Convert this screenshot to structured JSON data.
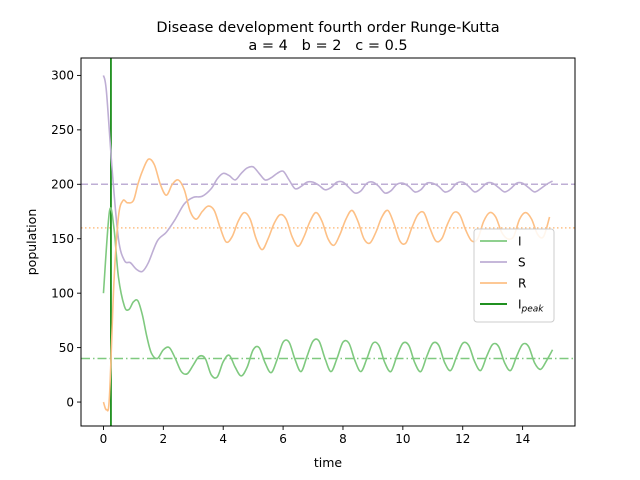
{
  "chart_data": {
    "type": "line",
    "title": "Disease development fourth order Runge-Kutta",
    "subtitle": "a = 4   b = 2   c = 0.5",
    "xlabel": "time",
    "ylabel": "population",
    "xlim": [
      -0.75,
      15.75
    ],
    "ylim": [
      -22,
      316
    ],
    "x_ticks": [
      0,
      2,
      4,
      6,
      8,
      10,
      12,
      14
    ],
    "y_ticks": [
      0,
      50,
      100,
      150,
      200,
      250,
      300
    ],
    "grid": false,
    "legend_position": "center right",
    "series": [
      {
        "name": "I",
        "color": "#7fc97f",
        "x": [
          0,
          0.2,
          0.35,
          0.5,
          0.7,
          0.85,
          1.0,
          1.15,
          1.3,
          1.45,
          1.6,
          1.8,
          2.0,
          2.2,
          2.4,
          2.6,
          2.8,
          3.0,
          3.2,
          3.4,
          3.6,
          3.8,
          4.0,
          4.2,
          4.4,
          4.6,
          4.8,
          5.0,
          5.2,
          5.4,
          5.6,
          5.8,
          6.0,
          6.2,
          6.4,
          6.6,
          6.8,
          7.0,
          7.2,
          7.4,
          7.6,
          7.8,
          8.0,
          8.2,
          8.4,
          8.6,
          8.8,
          9.0,
          9.2,
          9.4,
          9.6,
          9.8,
          10.0,
          10.2,
          10.4,
          10.6,
          10.8,
          11.0,
          11.2,
          11.4,
          11.6,
          11.8,
          12.0,
          12.2,
          12.4,
          12.6,
          12.8,
          13.0,
          13.2,
          13.4,
          13.6,
          13.8,
          14.0,
          14.2,
          14.4,
          14.6,
          14.8,
          15.0
        ],
        "values": [
          100,
          175,
          160,
          115,
          88,
          85,
          92,
          93,
          80,
          60,
          45,
          40,
          48,
          50,
          40,
          28,
          26,
          34,
          42,
          40,
          25,
          23,
          37,
          43,
          32,
          24,
          32,
          48,
          50,
          36,
          27,
          39,
          55,
          55,
          39,
          28,
          42,
          56,
          56,
          40,
          28,
          40,
          55,
          54,
          38,
          28,
          40,
          54,
          52,
          36,
          28,
          42,
          54,
          52,
          36,
          28,
          42,
          54,
          52,
          36,
          29,
          42,
          54,
          52,
          37,
          29,
          42,
          53,
          51,
          36,
          29,
          42,
          53,
          51,
          36,
          30,
          38,
          48
        ]
      },
      {
        "name": "S",
        "color": "#beaed4",
        "x": [
          0,
          0.1,
          0.3,
          0.5,
          0.7,
          0.9,
          1.1,
          1.3,
          1.5,
          1.8,
          2.1,
          2.4,
          2.7,
          3.0,
          3.3,
          3.6,
          3.8,
          4.0,
          4.2,
          4.4,
          4.6,
          4.8,
          5.0,
          5.2,
          5.4,
          5.6,
          5.8,
          6.0,
          6.2,
          6.4,
          6.6,
          6.8,
          7.0,
          7.2,
          7.4,
          7.6,
          7.8,
          8.0,
          8.2,
          8.4,
          8.6,
          8.8,
          9.0,
          9.2,
          9.4,
          9.6,
          9.8,
          10.0,
          10.2,
          10.4,
          10.6,
          10.8,
          11.0,
          11.2,
          11.4,
          11.6,
          11.8,
          12.0,
          12.2,
          12.4,
          12.6,
          12.8,
          13.0,
          13.2,
          13.4,
          13.6,
          13.8,
          14.0,
          14.2,
          14.4,
          14.6,
          14.8,
          15.0
        ],
        "values": [
          300,
          285,
          210,
          150,
          130,
          128,
          122,
          120,
          128,
          148,
          156,
          168,
          182,
          188,
          189,
          196,
          205,
          210,
          208,
          204,
          210,
          215,
          216,
          210,
          204,
          206,
          210,
          212,
          204,
          196,
          198,
          202,
          202,
          199,
          195,
          197,
          202,
          202,
          197,
          192,
          194,
          201,
          202,
          198,
          192,
          194,
          200,
          201,
          198,
          193,
          195,
          201,
          201,
          198,
          193,
          195,
          201,
          202,
          198,
          193,
          196,
          201,
          201,
          197,
          193,
          196,
          201,
          201,
          197,
          193,
          196,
          200,
          203
        ]
      },
      {
        "name": "R",
        "color": "#fdc086",
        "x": [
          0,
          0.1,
          0.2,
          0.35,
          0.5,
          0.65,
          0.8,
          1.0,
          1.15,
          1.3,
          1.5,
          1.7,
          1.9,
          2.1,
          2.3,
          2.5,
          2.7,
          2.9,
          3.1,
          3.3,
          3.5,
          3.7,
          3.9,
          4.1,
          4.3,
          4.5,
          4.7,
          4.9,
          5.1,
          5.3,
          5.5,
          5.7,
          5.9,
          6.1,
          6.3,
          6.5,
          6.7,
          6.9,
          7.1,
          7.3,
          7.5,
          7.7,
          7.9,
          8.1,
          8.3,
          8.5,
          8.7,
          8.9,
          9.1,
          9.3,
          9.5,
          9.7,
          9.9,
          10.1,
          10.3,
          10.5,
          10.7,
          10.9,
          11.1,
          11.3,
          11.5,
          11.7,
          11.9,
          12.1,
          12.3,
          12.5,
          12.7,
          12.9,
          13.1,
          13.3,
          13.5,
          13.7,
          13.9,
          14.1,
          14.3,
          14.5,
          14.7,
          14.9
        ],
        "values": [
          0,
          -7,
          5,
          110,
          170,
          185,
          183,
          185,
          200,
          212,
          223,
          218,
          200,
          190,
          200,
          204,
          195,
          175,
          168,
          175,
          180,
          176,
          160,
          147,
          152,
          166,
          174,
          168,
          150,
          140,
          150,
          164,
          172,
          168,
          152,
          143,
          152,
          166,
          174,
          166,
          150,
          144,
          154,
          168,
          176,
          166,
          150,
          146,
          156,
          170,
          176,
          164,
          148,
          146,
          160,
          172,
          174,
          160,
          148,
          150,
          164,
          174,
          172,
          158,
          148,
          150,
          166,
          174,
          170,
          156,
          150,
          152,
          168,
          174,
          168,
          154,
          152,
          170
        ]
      }
    ],
    "reference_lines": [
      {
        "orientation": "horizontal",
        "value": 40,
        "color": "#7fc97f",
        "style": "dashdot"
      },
      {
        "orientation": "horizontal",
        "value": 200,
        "color": "#beaed4",
        "style": "dashed"
      },
      {
        "orientation": "horizontal",
        "value": 160,
        "color": "#fdc086",
        "style": "dotted"
      },
      {
        "orientation": "vertical",
        "value": 0.25,
        "color": "#008000",
        "style": "solid",
        "name": "I",
        "name_subscript": "peak"
      }
    ]
  }
}
